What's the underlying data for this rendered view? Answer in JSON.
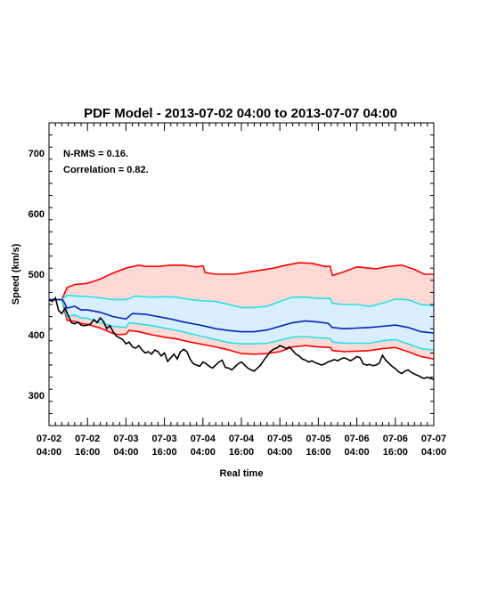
{
  "chart_data": {
    "type": "line",
    "title": "PDF Model - 2013-07-02 04:00 to 2013-07-07 04:00",
    "xlabel": "Real time",
    "ylabel": "Speed (km/s)",
    "xlim_hours": [
      0,
      120
    ],
    "ylim": [
      250,
      750
    ],
    "yticks": [
      300,
      400,
      500,
      600,
      700
    ],
    "xticks": [
      {
        "hour": 0,
        "line1": "07-02",
        "line2": "04:00"
      },
      {
        "hour": 12,
        "line1": "07-02",
        "line2": "16:00"
      },
      {
        "hour": 24,
        "line1": "07-03",
        "line2": "04:00"
      },
      {
        "hour": 36,
        "line1": "07-03",
        "line2": "16:00"
      },
      {
        "hour": 48,
        "line1": "07-04",
        "line2": "04:00"
      },
      {
        "hour": 60,
        "line1": "07-04",
        "line2": "16:00"
      },
      {
        "hour": 72,
        "line1": "07-05",
        "line2": "04:00"
      },
      {
        "hour": 84,
        "line1": "07-05",
        "line2": "16:00"
      },
      {
        "hour": 96,
        "line1": "07-06",
        "line2": "04:00"
      },
      {
        "hour": 108,
        "line1": "07-06",
        "line2": "16:00"
      },
      {
        "hour": 120,
        "line1": "07-07",
        "line2": "04:00"
      }
    ],
    "annotations": [
      "N-RMS = 0.16.",
      "Correlation = 0.82."
    ],
    "colors": {
      "outer_band": "#ff0000",
      "outer_fill": "#ffd9d6",
      "inner_band": "#26e0e8",
      "inner_fill": "#d9efff",
      "median": "#0022bb",
      "observed": "#000000"
    },
    "series": {
      "upper_outer": [
        [
          0,
          458
        ],
        [
          4,
          458
        ],
        [
          5.6,
          478
        ],
        [
          8,
          483
        ],
        [
          12,
          485
        ],
        [
          16,
          492
        ],
        [
          20,
          502
        ],
        [
          24,
          510
        ],
        [
          28,
          515
        ],
        [
          30,
          513
        ],
        [
          34,
          513
        ],
        [
          38,
          515
        ],
        [
          42,
          515
        ],
        [
          46,
          512
        ],
        [
          48,
          514
        ],
        [
          48.7,
          503
        ],
        [
          52,
          500
        ],
        [
          58,
          500
        ],
        [
          64,
          505
        ],
        [
          70,
          510
        ],
        [
          74,
          515
        ],
        [
          78,
          519
        ],
        [
          82,
          518
        ],
        [
          86,
          513
        ],
        [
          87.7,
          513
        ],
        [
          88.4,
          498
        ],
        [
          92,
          504
        ],
        [
          96,
          512
        ],
        [
          102,
          509
        ],
        [
          106,
          513
        ],
        [
          110,
          515
        ],
        [
          114,
          508
        ],
        [
          117,
          500
        ],
        [
          120,
          500
        ]
      ],
      "upper_inner": [
        [
          0,
          458
        ],
        [
          4,
          458
        ],
        [
          5.6,
          465
        ],
        [
          12,
          463
        ],
        [
          16,
          461
        ],
        [
          20,
          458
        ],
        [
          24,
          458
        ],
        [
          27,
          464
        ],
        [
          32,
          462
        ],
        [
          36,
          463
        ],
        [
          40,
          462
        ],
        [
          44,
          458
        ],
        [
          48,
          456
        ],
        [
          52,
          455
        ],
        [
          56,
          450
        ],
        [
          60,
          445
        ],
        [
          64,
          445
        ],
        [
          68,
          447
        ],
        [
          72,
          455
        ],
        [
          76,
          462
        ],
        [
          80,
          462
        ],
        [
          84,
          460
        ],
        [
          87.7,
          460
        ],
        [
          88.4,
          452
        ],
        [
          92,
          450
        ],
        [
          96,
          450
        ],
        [
          100,
          447
        ],
        [
          104,
          452
        ],
        [
          108,
          459
        ],
        [
          112,
          458
        ],
        [
          116,
          450
        ],
        [
          120,
          448
        ]
      ],
      "median": [
        [
          0,
          458
        ],
        [
          4,
          458
        ],
        [
          4.5,
          456
        ],
        [
          5.6,
          444
        ],
        [
          8,
          447
        ],
        [
          10,
          441
        ],
        [
          12,
          441
        ],
        [
          16,
          437
        ],
        [
          20,
          430
        ],
        [
          23,
          427
        ],
        [
          24,
          426
        ],
        [
          26,
          435
        ],
        [
          30,
          434
        ],
        [
          34,
          430
        ],
        [
          38,
          426
        ],
        [
          42,
          421
        ],
        [
          46,
          417
        ],
        [
          48,
          415
        ],
        [
          52,
          410
        ],
        [
          56,
          407
        ],
        [
          60,
          405
        ],
        [
          64,
          405
        ],
        [
          68,
          408
        ],
        [
          72,
          414
        ],
        [
          76,
          420
        ],
        [
          80,
          423
        ],
        [
          84,
          421
        ],
        [
          87,
          419
        ],
        [
          88.4,
          412
        ],
        [
          92,
          410
        ],
        [
          96,
          411
        ],
        [
          100,
          412
        ],
        [
          104,
          414
        ],
        [
          108,
          416
        ],
        [
          112,
          412
        ],
        [
          116,
          405
        ],
        [
          120,
          403
        ]
      ],
      "lower_inner": [
        [
          0,
          458
        ],
        [
          4,
          458
        ],
        [
          5.6,
          430
        ],
        [
          8,
          433
        ],
        [
          10,
          428
        ],
        [
          12,
          427
        ],
        [
          16,
          420
        ],
        [
          20,
          414
        ],
        [
          22,
          413
        ],
        [
          24,
          412
        ],
        [
          25,
          420
        ],
        [
          28,
          418
        ],
        [
          32,
          415
        ],
        [
          36,
          411
        ],
        [
          40,
          407
        ],
        [
          44,
          402
        ],
        [
          48,
          397
        ],
        [
          52,
          392
        ],
        [
          56,
          387
        ],
        [
          60,
          385
        ],
        [
          64,
          385
        ],
        [
          68,
          386
        ],
        [
          72,
          391
        ],
        [
          76,
          396
        ],
        [
          80,
          397
        ],
        [
          84,
          395
        ],
        [
          87.7,
          394
        ],
        [
          88.4,
          388
        ],
        [
          92,
          386
        ],
        [
          96,
          386
        ],
        [
          100,
          386
        ],
        [
          104,
          390
        ],
        [
          108,
          392
        ],
        [
          112,
          385
        ],
        [
          116,
          377
        ],
        [
          120,
          375
        ]
      ],
      "lower_outer": [
        [
          0,
          458
        ],
        [
          4,
          458
        ],
        [
          5.6,
          424
        ],
        [
          8,
          422
        ],
        [
          10,
          419
        ],
        [
          12,
          417
        ],
        [
          16,
          411
        ],
        [
          20,
          402
        ],
        [
          22,
          400
        ],
        [
          24,
          401
        ],
        [
          25,
          407
        ],
        [
          28,
          405
        ],
        [
          32,
          400
        ],
        [
          36,
          396
        ],
        [
          40,
          393
        ],
        [
          44,
          388
        ],
        [
          48,
          384
        ],
        [
          52,
          380
        ],
        [
          56,
          375
        ],
        [
          60,
          369
        ],
        [
          64,
          368
        ],
        [
          68,
          369
        ],
        [
          72,
          372
        ],
        [
          76,
          380
        ],
        [
          80,
          382
        ],
        [
          84,
          380
        ],
        [
          87.7,
          379
        ],
        [
          88.4,
          374
        ],
        [
          92,
          372
        ],
        [
          96,
          373
        ],
        [
          100,
          374
        ],
        [
          104,
          377
        ],
        [
          108,
          379
        ],
        [
          112,
          372
        ],
        [
          116,
          364
        ],
        [
          120,
          360
        ]
      ],
      "observed": [
        [
          0,
          458
        ],
        [
          1,
          455
        ],
        [
          2,
          461
        ],
        [
          3,
          440
        ],
        [
          4,
          435
        ],
        [
          5,
          444
        ],
        [
          6,
          432
        ],
        [
          7,
          420
        ],
        [
          8,
          418
        ],
        [
          9,
          421
        ],
        [
          10,
          416
        ],
        [
          11,
          415
        ],
        [
          12,
          416
        ],
        [
          13,
          418
        ],
        [
          14,
          425
        ],
        [
          15,
          420
        ],
        [
          16,
          428
        ],
        [
          17,
          422
        ],
        [
          18,
          410
        ],
        [
          19,
          415
        ],
        [
          20,
          405
        ],
        [
          21,
          398
        ],
        [
          22,
          395
        ],
        [
          23,
          392
        ],
        [
          24,
          385
        ],
        [
          25,
          388
        ],
        [
          26,
          380
        ],
        [
          27,
          378
        ],
        [
          28,
          382
        ],
        [
          29,
          375
        ],
        [
          30,
          370
        ],
        [
          31,
          372
        ],
        [
          32,
          368
        ],
        [
          33,
          375
        ],
        [
          34,
          372
        ],
        [
          35,
          365
        ],
        [
          36,
          370
        ],
        [
          37,
          356
        ],
        [
          38,
          362
        ],
        [
          39,
          368
        ],
        [
          40,
          360
        ],
        [
          41,
          372
        ],
        [
          42,
          376
        ],
        [
          43,
          372
        ],
        [
          44,
          360
        ],
        [
          45,
          352
        ],
        [
          46,
          350
        ],
        [
          47,
          348
        ],
        [
          48,
          355
        ],
        [
          49,
          352
        ],
        [
          50,
          348
        ],
        [
          51,
          345
        ],
        [
          52,
          350
        ],
        [
          53,
          355
        ],
        [
          54,
          358
        ],
        [
          55,
          346
        ],
        [
          56,
          345
        ],
        [
          57,
          342
        ],
        [
          58,
          347
        ],
        [
          59,
          352
        ],
        [
          60,
          355
        ],
        [
          61,
          350
        ],
        [
          62,
          345
        ],
        [
          63,
          342
        ],
        [
          64,
          340
        ],
        [
          65,
          345
        ],
        [
          66,
          350
        ],
        [
          67,
          358
        ],
        [
          68,
          365
        ],
        [
          69,
          372
        ],
        [
          70,
          376
        ],
        [
          71,
          378
        ],
        [
          72,
          382
        ],
        [
          73,
          380
        ],
        [
          74,
          377
        ],
        [
          75,
          380
        ],
        [
          76,
          374
        ],
        [
          77,
          368
        ],
        [
          78,
          365
        ],
        [
          79,
          360
        ],
        [
          80,
          358
        ],
        [
          81,
          355
        ],
        [
          82,
          357
        ],
        [
          83,
          354
        ],
        [
          84,
          352
        ],
        [
          85,
          350
        ],
        [
          86,
          352
        ],
        [
          87,
          355
        ],
        [
          88,
          357
        ],
        [
          89,
          359
        ],
        [
          90,
          357
        ],
        [
          91,
          360
        ],
        [
          92,
          362
        ],
        [
          93,
          360
        ],
        [
          94,
          357
        ],
        [
          95,
          360
        ],
        [
          96,
          364
        ],
        [
          97,
          362
        ],
        [
          98,
          352
        ],
        [
          99,
          350
        ],
        [
          100,
          351
        ],
        [
          101,
          349
        ],
        [
          102,
          350
        ],
        [
          103,
          353
        ],
        [
          104,
          366
        ],
        [
          105,
          358
        ],
        [
          106,
          353
        ],
        [
          107,
          348
        ],
        [
          108,
          344
        ],
        [
          109,
          339
        ],
        [
          110,
          336
        ],
        [
          111,
          340
        ],
        [
          112,
          342
        ],
        [
          113,
          338
        ],
        [
          114,
          335
        ],
        [
          115,
          333
        ],
        [
          116,
          330
        ],
        [
          117,
          328
        ],
        [
          118,
          330
        ],
        [
          119,
          328
        ],
        [
          120,
          326
        ]
      ]
    }
  }
}
